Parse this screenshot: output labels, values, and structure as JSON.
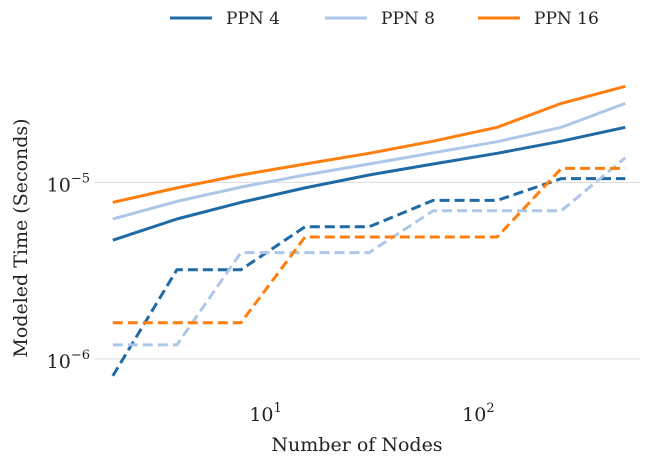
{
  "chart_data": {
    "type": "line",
    "xlabel": "Number of Nodes",
    "ylabel": "Modeled Time (Seconds)",
    "x_scale": "log",
    "y_scale": "log",
    "xlim": [
      1.65,
      600
    ],
    "ylim": [
      6e-07,
      6e-05
    ],
    "x_ticks": [
      {
        "value": 10,
        "base": "10",
        "exp": "1"
      },
      {
        "value": 100,
        "base": "10",
        "exp": "2"
      }
    ],
    "y_ticks": [
      {
        "value": 1e-06,
        "base": "10",
        "exp": "−6"
      },
      {
        "value": 1e-05,
        "base": "10",
        "exp": "−5"
      }
    ],
    "grid": "horizontal",
    "legend_position": "top",
    "legend": [
      {
        "label": "PPN 4",
        "color": "#1f6aa5"
      },
      {
        "label": "PPN 8",
        "color": "#aec7e8"
      },
      {
        "label": "PPN 16",
        "color": "#ff7f0e"
      }
    ],
    "series": [
      {
        "name": "PPN 4",
        "style": "solid",
        "color": "#1f6aa5",
        "x": [
          2,
          4,
          8,
          16,
          32,
          64,
          128,
          256,
          512
        ],
        "y": [
          4.7e-06,
          6.2e-06,
          7.7e-06,
          9.3e-06,
          1.1e-05,
          1.27e-05,
          1.46e-05,
          1.71e-05,
          2.05e-05
        ]
      },
      {
        "name": "PPN 8",
        "style": "solid",
        "color": "#aec7e8",
        "x": [
          2,
          4,
          8,
          16,
          32,
          64,
          128,
          256,
          512
        ],
        "y": [
          6.2e-06,
          7.8e-06,
          9.4e-06,
          1.1e-05,
          1.27e-05,
          1.47e-05,
          1.7e-05,
          2.05e-05,
          2.8e-05
        ]
      },
      {
        "name": "PPN 16",
        "style": "solid",
        "color": "#ff7f0e",
        "x": [
          2,
          4,
          8,
          16,
          32,
          64,
          128,
          256,
          512
        ],
        "y": [
          7.7e-06,
          9.3e-06,
          1.1e-05,
          1.27e-05,
          1.46e-05,
          1.71e-05,
          2.05e-05,
          2.8e-05,
          3.5e-05
        ]
      },
      {
        "name": "PPN 4",
        "style": "dashed",
        "color": "#1f6aa5",
        "x": [
          2,
          4,
          8,
          16,
          32,
          64,
          128,
          256,
          512
        ],
        "y": [
          8e-07,
          3.2e-06,
          3.2e-06,
          5.6e-06,
          5.6e-06,
          7.9e-06,
          7.9e-06,
          1.05e-05,
          1.05e-05
        ]
      },
      {
        "name": "PPN 8",
        "style": "dashed",
        "color": "#aec7e8",
        "x": [
          2,
          4,
          8,
          16,
          32,
          64,
          128,
          256,
          512
        ],
        "y": [
          1.2e-06,
          1.2e-06,
          4e-06,
          4e-06,
          4e-06,
          6.9e-06,
          6.9e-06,
          6.9e-06,
          1.38e-05
        ]
      },
      {
        "name": "PPN 16",
        "style": "dashed",
        "color": "#ff7f0e",
        "x": [
          2,
          4,
          8,
          16,
          32,
          64,
          128,
          256,
          512
        ],
        "y": [
          1.6e-06,
          1.6e-06,
          1.6e-06,
          4.9e-06,
          4.9e-06,
          4.9e-06,
          4.9e-06,
          1.2e-05,
          1.2e-05
        ]
      }
    ]
  }
}
